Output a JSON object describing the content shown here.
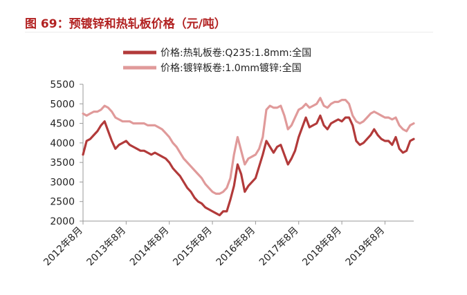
{
  "figure_title": "图 69：预镀锌和热轧板价格（元/吨）",
  "chart_data": {
    "type": "line",
    "title": "",
    "xlabel": "",
    "ylabel": "",
    "ylim": [
      2000,
      5500
    ],
    "yticks": [
      2000,
      2500,
      3000,
      3500,
      4000,
      4500,
      5000,
      5500
    ],
    "xlim": [
      "2012-08",
      "2020-04"
    ],
    "x_tick_labels": [
      "2012年8月",
      "2013年8月",
      "2014年8月",
      "2015年8月",
      "2016年8月",
      "2017年8月",
      "2018年8月",
      "2019年8月"
    ],
    "grid": false,
    "legend_position": "top",
    "series": [
      {
        "name": "价格:热轧板卷:Q235:1.8mm:全国",
        "color": "#b23a3a",
        "x": [
          "2012-08",
          "2012-09",
          "2012-10",
          "2012-11",
          "2012-12",
          "2013-01",
          "2013-02",
          "2013-03",
          "2013-04",
          "2013-05",
          "2013-06",
          "2013-07",
          "2013-08",
          "2013-09",
          "2013-10",
          "2013-11",
          "2013-12",
          "2014-01",
          "2014-02",
          "2014-03",
          "2014-04",
          "2014-05",
          "2014-06",
          "2014-07",
          "2014-08",
          "2014-09",
          "2014-10",
          "2014-11",
          "2014-12",
          "2015-01",
          "2015-02",
          "2015-03",
          "2015-04",
          "2015-05",
          "2015-06",
          "2015-07",
          "2015-08",
          "2015-09",
          "2015-10",
          "2015-11",
          "2015-12",
          "2016-01",
          "2016-02",
          "2016-03",
          "2016-04",
          "2016-05",
          "2016-06",
          "2016-07",
          "2016-08",
          "2016-09",
          "2016-10",
          "2016-11",
          "2016-12",
          "2017-01",
          "2017-02",
          "2017-03",
          "2017-04",
          "2017-05",
          "2017-06",
          "2017-07",
          "2017-08",
          "2017-09",
          "2017-10",
          "2017-11",
          "2017-12",
          "2018-01",
          "2018-02",
          "2018-03",
          "2018-04",
          "2018-05",
          "2018-06",
          "2018-07",
          "2018-08",
          "2018-09",
          "2018-10",
          "2018-11",
          "2018-12",
          "2019-01",
          "2019-02",
          "2019-03",
          "2019-04",
          "2019-05",
          "2019-06",
          "2019-07",
          "2019-08",
          "2019-09",
          "2019-10",
          "2019-11",
          "2019-12",
          "2020-01",
          "2020-02",
          "2020-03",
          "2020-04"
        ],
        "values": [
          3700,
          4050,
          4100,
          4200,
          4300,
          4450,
          4550,
          4300,
          4050,
          3850,
          3950,
          4000,
          4050,
          3950,
          3900,
          3850,
          3800,
          3800,
          3750,
          3700,
          3750,
          3700,
          3650,
          3600,
          3500,
          3350,
          3250,
          3150,
          3000,
          2850,
          2750,
          2600,
          2500,
          2450,
          2350,
          2300,
          2250,
          2200,
          2150,
          2250,
          2250,
          2550,
          2900,
          3450,
          3200,
          2750,
          2900,
          3000,
          3100,
          3400,
          3700,
          4050,
          3900,
          3750,
          3900,
          3950,
          3700,
          3450,
          3600,
          3800,
          4150,
          4400,
          4650,
          4400,
          4450,
          4500,
          4700,
          4450,
          4350,
          4500,
          4550,
          4600,
          4550,
          4650,
          4650,
          4450,
          4050,
          3950,
          4000,
          4100,
          4200,
          4350,
          4200,
          4100,
          4050,
          4050,
          3950,
          4150,
          3850,
          3750,
          3800,
          4050,
          4100
        ]
      },
      {
        "name": "价格:镀锌板卷:1.0mm镀锌:全国",
        "color": "#e09a9a",
        "x": [
          "2012-08",
          "2012-09",
          "2012-10",
          "2012-11",
          "2012-12",
          "2013-01",
          "2013-02",
          "2013-03",
          "2013-04",
          "2013-05",
          "2013-06",
          "2013-07",
          "2013-08",
          "2013-09",
          "2013-10",
          "2013-11",
          "2013-12",
          "2014-01",
          "2014-02",
          "2014-03",
          "2014-04",
          "2014-05",
          "2014-06",
          "2014-07",
          "2014-08",
          "2014-09",
          "2014-10",
          "2014-11",
          "2014-12",
          "2015-01",
          "2015-02",
          "2015-03",
          "2015-04",
          "2015-05",
          "2015-06",
          "2015-07",
          "2015-08",
          "2015-09",
          "2015-10",
          "2015-11",
          "2015-12",
          "2016-01",
          "2016-02",
          "2016-03",
          "2016-04",
          "2016-05",
          "2016-06",
          "2016-07",
          "2016-08",
          "2016-09",
          "2016-10",
          "2016-11",
          "2016-12",
          "2017-01",
          "2017-02",
          "2017-03",
          "2017-04",
          "2017-05",
          "2017-06",
          "2017-07",
          "2017-08",
          "2017-09",
          "2017-10",
          "2017-11",
          "2017-12",
          "2018-01",
          "2018-02",
          "2018-03",
          "2018-04",
          "2018-05",
          "2018-06",
          "2018-07",
          "2018-08",
          "2018-09",
          "2018-10",
          "2018-11",
          "2018-12",
          "2019-01",
          "2019-02",
          "2019-03",
          "2019-04",
          "2019-05",
          "2019-06",
          "2019-07",
          "2019-08",
          "2019-09",
          "2019-10",
          "2019-11",
          "2019-12",
          "2020-01",
          "2020-02",
          "2020-03",
          "2020-04"
        ],
        "values": [
          4750,
          4700,
          4750,
          4800,
          4800,
          4850,
          4950,
          4900,
          4800,
          4650,
          4600,
          4550,
          4550,
          4550,
          4500,
          4500,
          4500,
          4500,
          4450,
          4450,
          4450,
          4400,
          4350,
          4250,
          4150,
          4000,
          3900,
          3750,
          3600,
          3500,
          3400,
          3300,
          3200,
          3100,
          2950,
          2850,
          2750,
          2700,
          2700,
          2750,
          2850,
          3100,
          3700,
          4150,
          3800,
          3450,
          3600,
          3650,
          3700,
          3850,
          4150,
          4850,
          4950,
          4900,
          4900,
          4950,
          4700,
          4350,
          4450,
          4650,
          4850,
          4900,
          5000,
          4900,
          4950,
          5000,
          5150,
          4950,
          4900,
          5000,
          5050,
          5050,
          5100,
          5100,
          5000,
          4700,
          4550,
          4500,
          4550,
          4650,
          4750,
          4800,
          4750,
          4700,
          4650,
          4650,
          4600,
          4650,
          4450,
          4350,
          4300,
          4450,
          4500
        ]
      }
    ]
  }
}
